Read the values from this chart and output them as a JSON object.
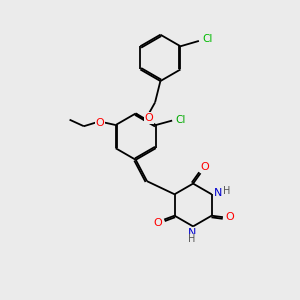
{
  "background_color": "#ebebeb",
  "bond_color": "#000000",
  "atom_colors": {
    "O": "#ff0000",
    "N": "#0000cd",
    "Cl_top": "#00bb00",
    "Cl_mid": "#00aa00",
    "H": "#555555",
    "C": "#000000"
  },
  "figsize": [
    3.0,
    3.0
  ],
  "dpi": 100
}
